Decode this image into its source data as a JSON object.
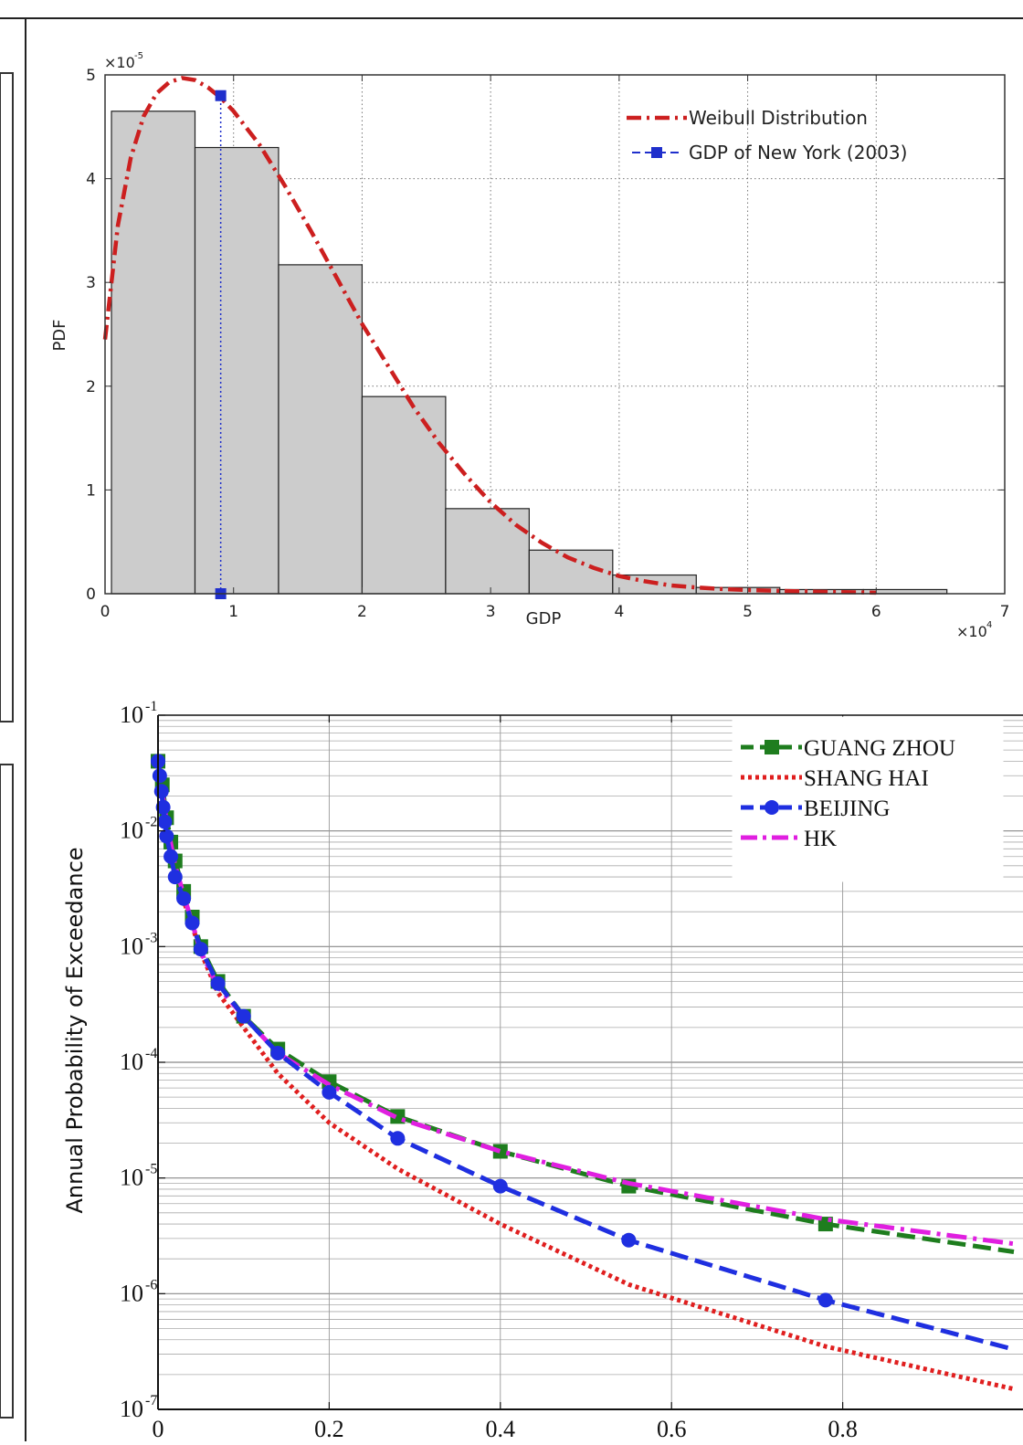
{
  "chart_data": [
    {
      "type": "bar",
      "xlabel": "GDP",
      "ylabel": "PDF",
      "x_multiplier": "x10^4",
      "y_multiplier": "x10^-5",
      "xlim": [
        0,
        7
      ],
      "ylim": [
        0,
        5
      ],
      "x_ticks": [
        0,
        1,
        2,
        3,
        4,
        5,
        6,
        7
      ],
      "y_ticks": [
        0,
        1,
        2,
        3,
        4,
        5
      ],
      "grid": true,
      "legend_position": "top-right",
      "histogram": {
        "bin_edges": [
          0.05,
          0.7,
          1.35,
          2.0,
          2.65,
          3.3,
          3.95,
          4.6,
          5.25,
          5.9,
          6.55
        ],
        "heights": [
          4.65,
          4.3,
          3.17,
          1.9,
          0.82,
          0.42,
          0.18,
          0.06,
          0.04,
          0.04
        ],
        "color": "#cccccc"
      },
      "series": [
        {
          "name": "Weibull Distribution",
          "style": "dash-dot",
          "color": "#cc1f1f",
          "x": [
            0,
            0.1,
            0.2,
            0.3,
            0.4,
            0.5,
            0.6,
            0.7,
            0.8,
            0.9,
            1.0,
            1.2,
            1.4,
            1.6,
            1.8,
            2.0,
            2.2,
            2.4,
            2.6,
            2.8,
            3.0,
            3.2,
            3.4,
            3.6,
            3.8,
            4.0,
            4.2,
            4.4,
            4.6,
            4.8,
            5.0,
            5.5,
            6.0
          ],
          "y": [
            2.45,
            3.55,
            4.2,
            4.6,
            4.82,
            4.93,
            4.97,
            4.95,
            4.88,
            4.78,
            4.65,
            4.33,
            3.93,
            3.5,
            3.05,
            2.6,
            2.2,
            1.8,
            1.45,
            1.15,
            0.88,
            0.66,
            0.49,
            0.35,
            0.25,
            0.17,
            0.12,
            0.08,
            0.06,
            0.045,
            0.035,
            0.02,
            0.01
          ]
        },
        {
          "name": "GDP of New York (2003)",
          "style": "dashed-square",
          "color": "#1f2fcc",
          "x": [
            0.9,
            0.9
          ],
          "y": [
            0,
            4.8
          ]
        }
      ]
    },
    {
      "type": "line",
      "xlabel": "",
      "ylabel": "Annual Probability of Exceedance",
      "y_scale": "log",
      "xlim": [
        0,
        1
      ],
      "ylim": [
        1e-07,
        0.1
      ],
      "x_ticks": [
        0,
        0.2,
        0.4,
        0.6,
        0.8
      ],
      "x_tick_labels": [
        "0",
        "0.2",
        "0.4",
        "0.6",
        "0.8"
      ],
      "y_ticks": [
        1e-07,
        1e-06,
        1e-05,
        0.0001,
        0.001,
        0.01,
        0.1
      ],
      "y_tick_labels": [
        {
          "base": "10",
          "exp": "-7"
        },
        {
          "base": "10",
          "exp": "-6"
        },
        {
          "base": "10",
          "exp": "-5"
        },
        {
          "base": "10",
          "exp": "-4"
        },
        {
          "base": "10",
          "exp": "-3"
        },
        {
          "base": "10",
          "exp": "-2"
        },
        {
          "base": "10",
          "exp": "-1"
        }
      ],
      "grid": true,
      "legend_position": "top-right",
      "series": [
        {
          "name": "GUANG ZHOU",
          "color": "#1e7d1e",
          "style": "dashed-square",
          "x": [
            0,
            0.005,
            0.01,
            0.015,
            0.02,
            0.03,
            0.04,
            0.05,
            0.07,
            0.1,
            0.14,
            0.2,
            0.28,
            0.4,
            0.55,
            0.78,
            1.0
          ],
          "y": [
            0.04,
            0.025,
            0.013,
            0.008,
            0.0055,
            0.003,
            0.0018,
            0.001,
            0.0005,
            0.00025,
            0.00013,
            6.8e-05,
            3.4e-05,
            1.7e-05,
            8.5e-06,
            4e-06,
            2.3e-06
          ]
        },
        {
          "name": "SHANG HAI",
          "color": "#e01f1f",
          "style": "dotted",
          "x": [
            0,
            0.01,
            0.02,
            0.03,
            0.05,
            0.07,
            0.1,
            0.14,
            0.2,
            0.28,
            0.4,
            0.55,
            0.78,
            1.0
          ],
          "y": [
            0.04,
            0.01,
            0.005,
            0.0025,
            0.0009,
            0.0004,
            0.0002,
            8e-05,
            3e-05,
            1.2e-05,
            4e-06,
            1.2e-06,
            3.5e-07,
            1.5e-07
          ]
        },
        {
          "name": "BEIJING",
          "color": "#1f2fe0",
          "style": "dashed-circle",
          "x": [
            0,
            0.002,
            0.004,
            0.006,
            0.008,
            0.01,
            0.015,
            0.02,
            0.03,
            0.04,
            0.05,
            0.07,
            0.1,
            0.14,
            0.2,
            0.28,
            0.4,
            0.55,
            0.78,
            1.0
          ],
          "y": [
            0.04,
            0.03,
            0.022,
            0.016,
            0.012,
            0.009,
            0.006,
            0.004,
            0.0026,
            0.0016,
            0.00095,
            0.00048,
            0.00025,
            0.00012,
            5.5e-05,
            2.2e-05,
            8.5e-06,
            2.9e-06,
            8.8e-07,
            3.3e-07
          ]
        },
        {
          "name": "HK",
          "color": "#e01fe0",
          "style": "dash-dot",
          "x": [
            0,
            0.01,
            0.02,
            0.03,
            0.05,
            0.07,
            0.1,
            0.14,
            0.2,
            0.28,
            0.4,
            0.55,
            0.78,
            1.0
          ],
          "y": [
            0.04,
            0.012,
            0.005,
            0.0028,
            0.0009,
            0.00045,
            0.00025,
            0.00012,
            6.4e-05,
            3.3e-05,
            1.7e-05,
            9e-06,
            4.4e-06,
            2.7e-06
          ]
        }
      ]
    }
  ]
}
